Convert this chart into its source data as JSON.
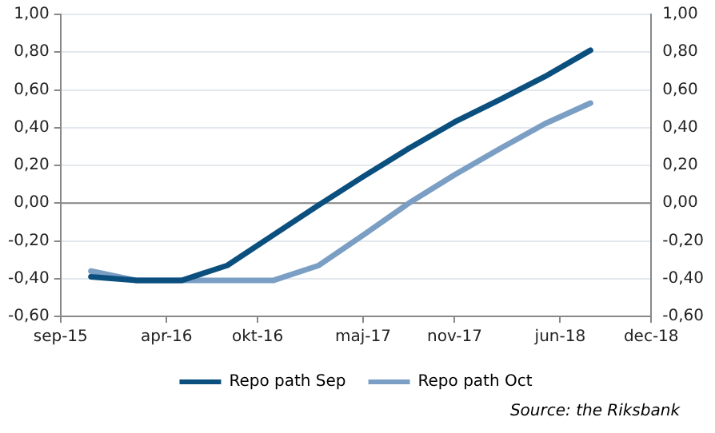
{
  "chart_data": {
    "type": "line",
    "x": [
      "2015-11-01",
      "2016-02-01",
      "2016-05-01",
      "2016-08-01",
      "2016-11-01",
      "2017-02-01",
      "2017-05-01",
      "2017-08-01",
      "2017-11-01",
      "2018-02-01",
      "2018-05-01",
      "2018-08-01"
    ],
    "series": [
      {
        "name": "Repo path Sep",
        "color": "#0b4f7f",
        "values": [
          -0.39,
          -0.41,
          -0.41,
          -0.33,
          -0.17,
          -0.01,
          0.14,
          0.29,
          0.43,
          0.55,
          0.67,
          0.81
        ]
      },
      {
        "name": "Repo path Oct",
        "color": "#7b9fc4",
        "values": [
          -0.36,
          -0.41,
          -0.41,
          -0.41,
          -0.41,
          -0.33,
          -0.17,
          0.0,
          0.15,
          0.29,
          0.42,
          0.53
        ]
      }
    ],
    "xlim": [
      "2015-09-01",
      "2018-12-01"
    ],
    "xticks": [
      {
        "value": "2015-09-01",
        "label": "sep-15"
      },
      {
        "value": "2016-04-01",
        "label": "apr-16"
      },
      {
        "value": "2016-10-01",
        "label": "okt-16"
      },
      {
        "value": "2017-05-01",
        "label": "maj-17"
      },
      {
        "value": "2017-11-01",
        "label": "nov-17"
      },
      {
        "value": "2018-06-01",
        "label": "jun-18"
      },
      {
        "value": "2018-12-01",
        "label": "dec-18"
      }
    ],
    "ylim": [
      -0.6,
      1.0
    ],
    "yticks": [
      {
        "value": -0.6,
        "label": "-0,60"
      },
      {
        "value": -0.4,
        "label": "-0,40"
      },
      {
        "value": -0.2,
        "label": "-0,20"
      },
      {
        "value": 0,
        "label": "0,00"
      },
      {
        "value": 0.2,
        "label": "0,20"
      },
      {
        "value": 0.4,
        "label": "0,40"
      },
      {
        "value": 0.6,
        "label": "0,60"
      },
      {
        "value": 0.8,
        "label": "0,80"
      },
      {
        "value": 1.0,
        "label": "1,00"
      }
    ],
    "y2lim": [
      -0.6,
      1.0
    ],
    "y2ticks": [
      {
        "value": -0.6,
        "label": "-0,60"
      },
      {
        "value": -0.4,
        "label": "-0,40"
      },
      {
        "value": -0.2,
        "label": "-0,20"
      },
      {
        "value": 0,
        "label": "0,00"
      },
      {
        "value": 0.2,
        "label": "0,20"
      },
      {
        "value": 0.4,
        "label": "0,40"
      },
      {
        "value": 0.6,
        "label": "0,60"
      },
      {
        "value": 0.8,
        "label": "0,80"
      },
      {
        "value": 1.0,
        "label": "1,00"
      }
    ],
    "grid": "y",
    "legend": "bottom",
    "marker": "none",
    "line_style": "solid",
    "annotations": [
      "Source: the Riksbank"
    ]
  }
}
